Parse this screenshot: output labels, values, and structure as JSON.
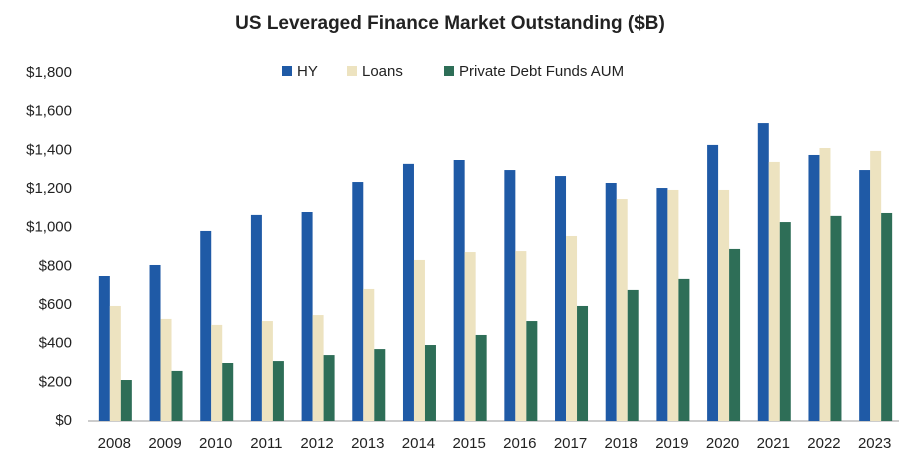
{
  "chart_data": {
    "type": "bar",
    "title": "US Leveraged Finance Market Outstanding ($B)",
    "categories": [
      "2008",
      "2009",
      "2010",
      "2011",
      "2012",
      "2013",
      "2014",
      "2015",
      "2016",
      "2017",
      "2018",
      "2019",
      "2020",
      "2021",
      "2022",
      "2023"
    ],
    "series": [
      {
        "name": "HY",
        "color": "#1f5aa6",
        "values": [
          750,
          807,
          983,
          1066,
          1081,
          1236,
          1330,
          1350,
          1298,
          1267,
          1231,
          1205,
          1428,
          1541,
          1376,
          1298
        ]
      },
      {
        "name": "Loans",
        "color": "#ede3c0",
        "values": [
          595,
          528,
          497,
          517,
          548,
          683,
          833,
          874,
          879,
          957,
          1148,
          1195,
          1195,
          1340,
          1412,
          1397
        ]
      },
      {
        "name": "Private Debt Funds AUM",
        "color": "#2e6e57",
        "values": [
          212,
          259,
          300,
          310,
          341,
          372,
          393,
          445,
          517,
          595,
          678,
          735,
          890,
          1029,
          1061,
          1076
        ]
      }
    ],
    "ylim": [
      0,
      1800
    ],
    "yticks": [
      {
        "value": 0,
        "label": "$0"
      },
      {
        "value": 200,
        "label": "$200"
      },
      {
        "value": 400,
        "label": "$400"
      },
      {
        "value": 600,
        "label": "$600"
      },
      {
        "value": 800,
        "label": "$800"
      },
      {
        "value": 1000,
        "label": "$1,000"
      },
      {
        "value": 1200,
        "label": "$1,200"
      },
      {
        "value": 1400,
        "label": "$1,400"
      },
      {
        "value": 1600,
        "label": "$1,600"
      },
      {
        "value": 1800,
        "label": "$1,800"
      }
    ],
    "legend": "top"
  }
}
